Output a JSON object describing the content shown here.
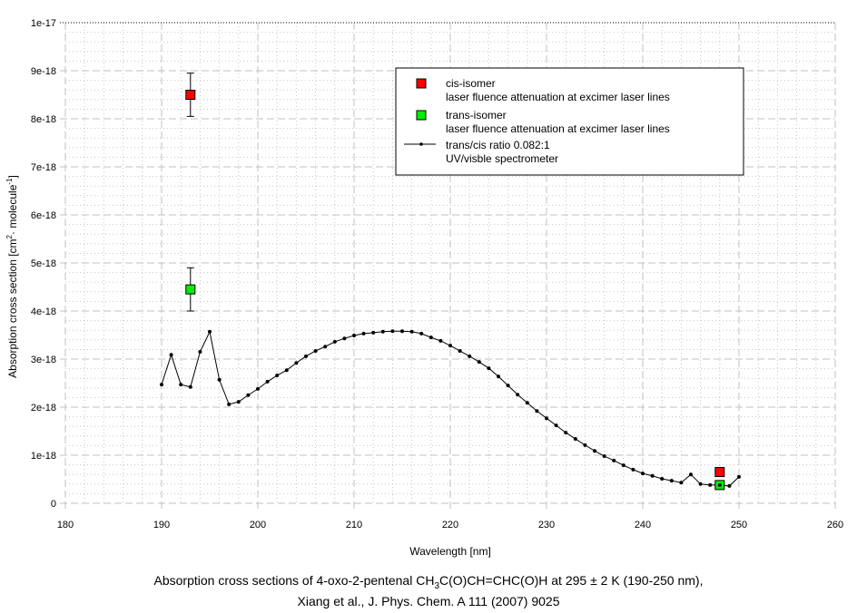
{
  "chart_data": {
    "type": "line",
    "xlabel": "Wavelength [nm]",
    "ylabel": "Absorption cross section [cm2 · molecule-1]",
    "ylabel_parts": {
      "a": "Absorption cross section [cm",
      "sup1": "2",
      "b": " · molecule",
      "sup2": "-1",
      "c": "]"
    },
    "xlim": [
      180,
      260
    ],
    "ylim": [
      0,
      1e-17
    ],
    "x_ticks": [
      "180",
      "190",
      "200",
      "210",
      "220",
      "230",
      "240",
      "250",
      "260"
    ],
    "y_ticks": [
      "0",
      "1e-18",
      "2e-18",
      "3e-18",
      "4e-18",
      "5e-18",
      "6e-18",
      "7e-18",
      "8e-18",
      "9e-18",
      "1e-17"
    ],
    "grid": true,
    "legend_position": "top-right",
    "series": [
      {
        "name": "cis-isomer",
        "desc": "laser fluence attenuation at excimer laser lines",
        "kind": "marker",
        "color": "#ff0000",
        "points": [
          {
            "x": 193,
            "y": 8.5e-18,
            "err": 4.5e-19
          },
          {
            "x": 248,
            "y": 6.5e-19
          }
        ]
      },
      {
        "name": "trans-isomer",
        "desc": "laser fluence attenuation at excimer laser lines",
        "kind": "marker",
        "color": "#00ee00",
        "points": [
          {
            "x": 193,
            "y": 4.45e-18,
            "err": 4.5e-19
          },
          {
            "x": 248,
            "y": 3.8e-19
          }
        ]
      },
      {
        "name": "trans/cis ratio 0.082:1",
        "desc": "UV/visble spectrometer",
        "kind": "line",
        "color": "#000000",
        "x": [
          190,
          191,
          192,
          193,
          194,
          195,
          196,
          197,
          198,
          199,
          200,
          201,
          202,
          203,
          204,
          205,
          206,
          207,
          208,
          209,
          210,
          211,
          212,
          213,
          214,
          215,
          216,
          217,
          218,
          219,
          220,
          221,
          222,
          223,
          224,
          225,
          226,
          227,
          228,
          229,
          230,
          231,
          232,
          233,
          234,
          235,
          236,
          237,
          238,
          239,
          240,
          241,
          242,
          243,
          244,
          245,
          246,
          247,
          248,
          249,
          250
        ],
        "y_e18": [
          2.47,
          3.09,
          2.47,
          2.42,
          3.15,
          3.57,
          2.57,
          2.06,
          2.11,
          2.25,
          2.38,
          2.53,
          2.66,
          2.77,
          2.92,
          3.06,
          3.17,
          3.26,
          3.36,
          3.43,
          3.49,
          3.53,
          3.55,
          3.57,
          3.58,
          3.58,
          3.57,
          3.53,
          3.45,
          3.38,
          3.28,
          3.17,
          3.06,
          2.94,
          2.81,
          2.64,
          2.45,
          2.26,
          2.09,
          1.92,
          1.77,
          1.62,
          1.47,
          1.34,
          1.21,
          1.09,
          0.98,
          0.89,
          0.79,
          0.7,
          0.62,
          0.57,
          0.51,
          0.47,
          0.43,
          0.6,
          0.4,
          0.38,
          0.38,
          0.36,
          0.55
        ]
      }
    ]
  },
  "caption": {
    "line1_a": "Absorption cross sections of 4-oxo-2-pentenal CH",
    "line1_sub": "3",
    "line1_b": "C(O)CH=CHC(O)H at 295 ± 2 K (190-250 nm),",
    "line2": "Xiang et al., J. Phys. Chem. A 111 (2007) 9025"
  }
}
